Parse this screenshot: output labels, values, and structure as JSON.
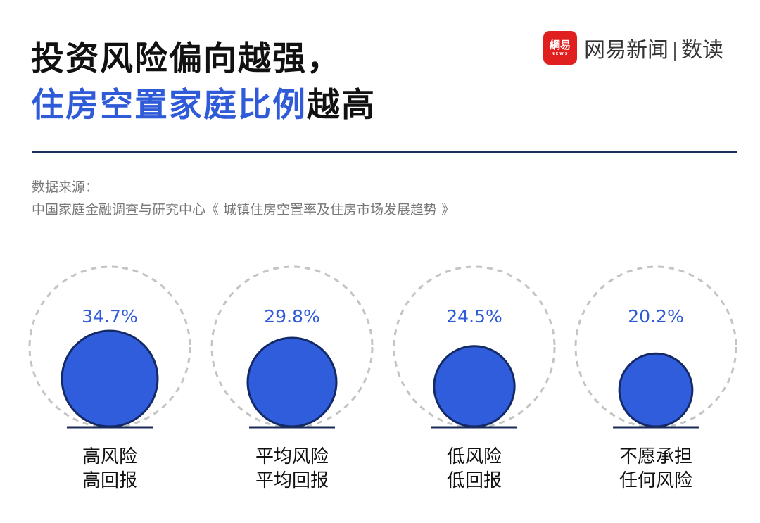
{
  "title": {
    "line1": "投资风险偏向越强，",
    "line2_highlight": "住房空置家庭比例",
    "line2_rest": "越高"
  },
  "logo": {
    "badge": "網易",
    "badge_sub": "NEWS",
    "name": "网易新闻",
    "product": "数读"
  },
  "source": {
    "label": "数据来源：",
    "text": "中国家庭金融调查与研究中心《 城镇住房空置率及住房市场发展趋势 》"
  },
  "colors": {
    "accent": "#2f5ad8",
    "circle_fill": "#305ddb",
    "circle_stroke": "#142a66",
    "dashed": "#c4c4c4",
    "rule": "#1c2c5a"
  },
  "chart_data": {
    "type": "bubble",
    "categories": [
      [
        "高风险",
        "高回报"
      ],
      [
        "平均风险",
        "平均回报"
      ],
      [
        "低风险",
        "低回报"
      ],
      [
        "不愿承担",
        "任何风险"
      ]
    ],
    "values": [
      34.7,
      29.8,
      24.5,
      20.2
    ],
    "value_labels": [
      "34.7%",
      "29.8%",
      "24.5%",
      "20.2%"
    ],
    "unit": "%"
  }
}
